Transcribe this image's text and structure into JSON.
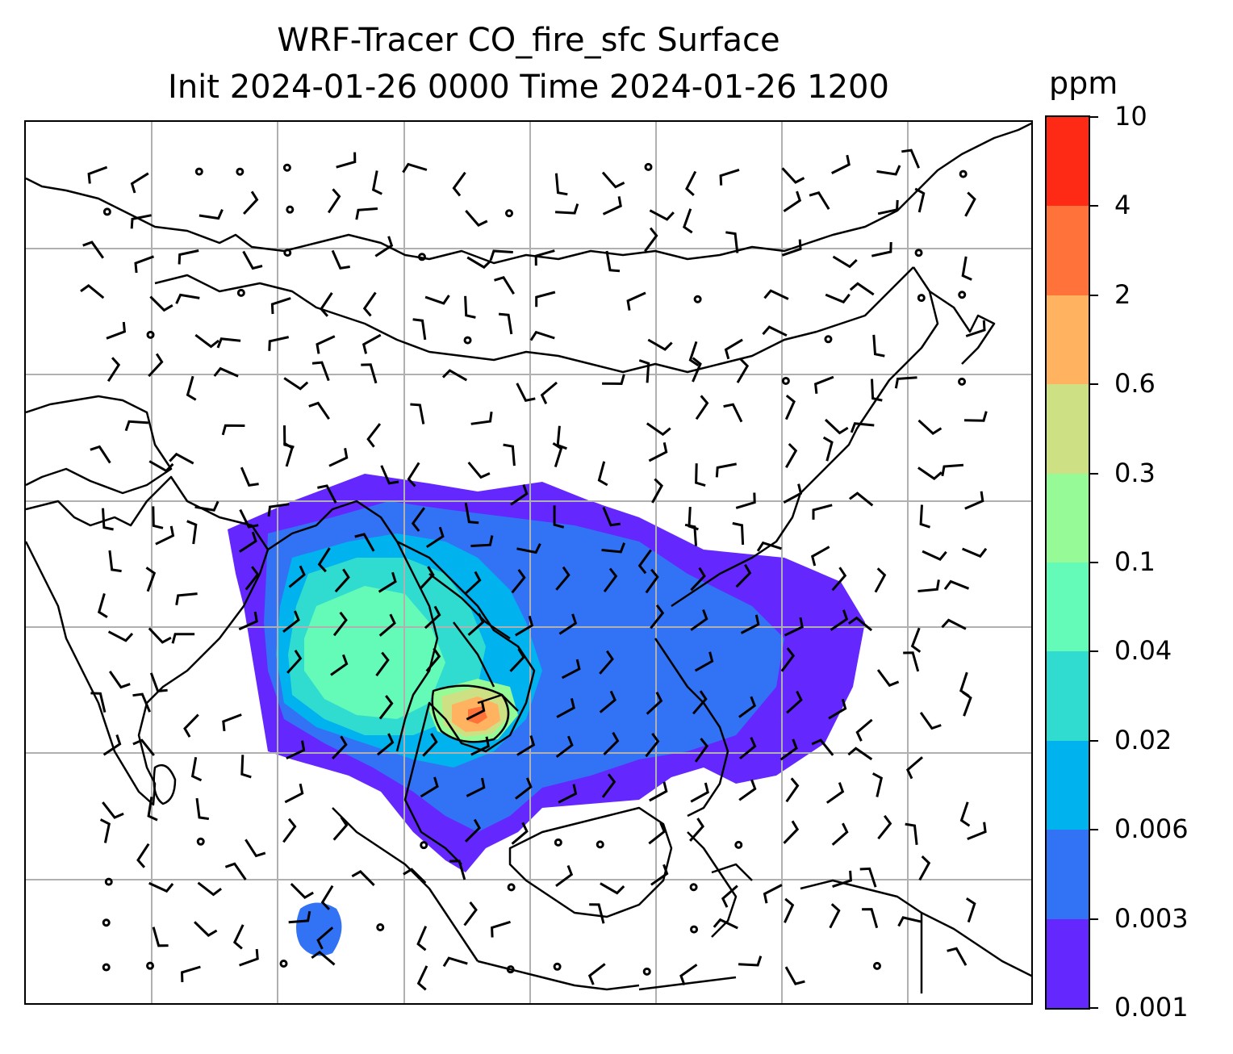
{
  "title": {
    "line1": "WRF-Tracer CO_fire_sfc Surface",
    "line2": "Init 2024-01-26 0000 Time 2024-01-26 1200"
  },
  "colorbar": {
    "units": "ppm",
    "levels": [
      "0.001",
      "0.003",
      "0.006",
      "0.02",
      "0.04",
      "0.1",
      "0.3",
      "0.6",
      "2",
      "4",
      "10"
    ],
    "colors": [
      "#6428ff",
      "#3273f5",
      "#00b2ee",
      "#30dccf",
      "#64fab7",
      "#96fb96",
      "#cde184",
      "#ffb260",
      "#ff7239",
      "#ff2a16"
    ]
  },
  "map": {
    "gridlines": true,
    "gridline_color": "#b0b0b0",
    "coastline_color": "#000000",
    "barb_color": "#000000",
    "plume_levels_shown": [
      "0.001",
      "0.003",
      "0.006",
      "0.02",
      "0.04",
      "0.1",
      "0.3",
      "0.6",
      "2"
    ],
    "region": "South and Southeast Asia, East Asia, Maritime Continent"
  }
}
